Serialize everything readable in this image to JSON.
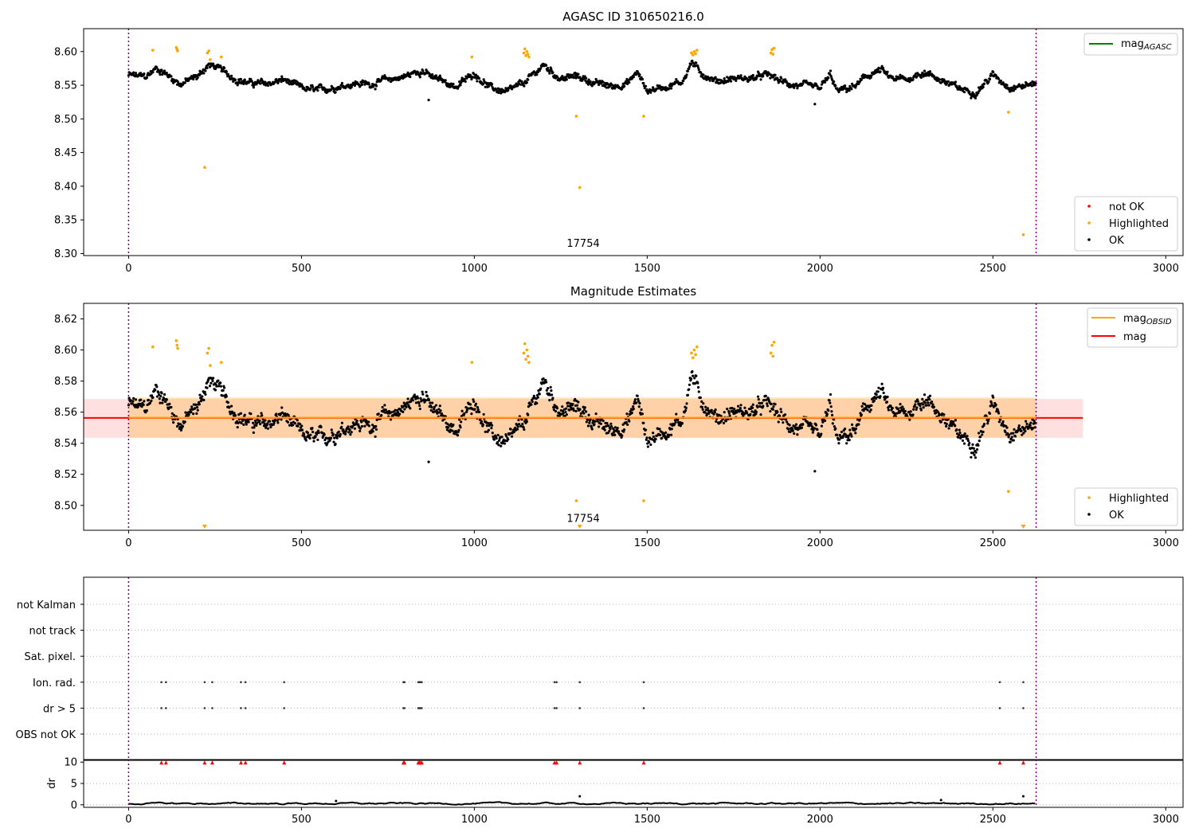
{
  "chart_data": [
    {
      "type": "scatter",
      "title": "AGASC ID 310650216.0",
      "xlim": [
        -130,
        3050
      ],
      "ylim": [
        8.297,
        8.634
      ],
      "xticks": [
        0,
        500,
        1000,
        1500,
        2000,
        2500,
        3000
      ],
      "yticks": [
        8.3,
        8.35,
        8.4,
        8.45,
        8.5,
        8.55,
        8.6
      ],
      "ytick_labels": [
        "8.30",
        "8.35",
        "8.40",
        "8.45",
        "8.50",
        "8.55",
        "8.60"
      ],
      "vlines_x": [
        0,
        2625
      ],
      "obsid_label": {
        "text": "17754",
        "x": 1315,
        "y": 8.31
      },
      "legends": [
        {
          "position": "upper right",
          "items": [
            {
              "label": "mag",
              "sub": "AGASC",
              "color": "#008000",
              "kind": "line"
            }
          ]
        },
        {
          "position": "lower right",
          "items": [
            {
              "label": "not OK",
              "color": "#ff0000",
              "kind": "dot"
            },
            {
              "label": "Highlighted",
              "color": "#ffa500",
              "kind": "dot"
            },
            {
              "label": "OK",
              "color": "#000000",
              "kind": "dot"
            }
          ]
        }
      ],
      "series": [
        {
          "name": "OK",
          "color": "#000000",
          "kind": "scatter",
          "profile_x": [
            0,
            50,
            80,
            100,
            150,
            200,
            230,
            250,
            300,
            350,
            400,
            450,
            500,
            550,
            600,
            650,
            700,
            750,
            800,
            850,
            880,
            900,
            950,
            1000,
            1050,
            1100,
            1150,
            1200,
            1250,
            1300,
            1350,
            1400,
            1450,
            1470,
            1500,
            1550,
            1600,
            1630,
            1650,
            1700,
            1750,
            1800,
            1850,
            1900,
            1950,
            2000,
            2030,
            2050,
            2100,
            2150,
            2180,
            2200,
            2250,
            2300,
            2350,
            2400,
            2450,
            2500,
            2550,
            2600,
            2625
          ],
          "profile_y": [
            8.565,
            8.562,
            8.575,
            8.57,
            8.552,
            8.563,
            8.58,
            8.578,
            8.562,
            8.553,
            8.552,
            8.558,
            8.545,
            8.542,
            8.548,
            8.553,
            8.552,
            8.558,
            8.563,
            8.573,
            8.56,
            8.558,
            8.548,
            8.568,
            8.545,
            8.54,
            8.555,
            8.58,
            8.56,
            8.563,
            8.553,
            8.548,
            8.555,
            8.57,
            8.542,
            8.548,
            8.555,
            8.585,
            8.57,
            8.556,
            8.56,
            8.56,
            8.565,
            8.553,
            8.548,
            8.545,
            8.565,
            8.54,
            8.548,
            8.568,
            8.572,
            8.56,
            8.558,
            8.57,
            8.558,
            8.545,
            8.54,
            8.565,
            8.548,
            8.55,
            8.553
          ],
          "outliers": [
            [
              868,
              8.528
            ],
            [
              1985,
              8.522
            ]
          ]
        },
        {
          "name": "Highlighted",
          "color": "#ffa500",
          "kind": "scatter",
          "points": [
            [
              70,
              8.602
            ],
            [
              138,
              8.606
            ],
            [
              140,
              8.603
            ],
            [
              142,
              8.601
            ],
            [
              220,
              8.428
            ],
            [
              228,
              8.598
            ],
            [
              232,
              8.601
            ],
            [
              236,
              8.588
            ],
            [
              268,
              8.592
            ],
            [
              993,
              8.592
            ],
            [
              1143,
              8.598
            ],
            [
              1146,
              8.604
            ],
            [
              1149,
              8.594
            ],
            [
              1152,
              8.6
            ],
            [
              1155,
              8.596
            ],
            [
              1158,
              8.592
            ],
            [
              1295,
              8.504
            ],
            [
              1305,
              8.398
            ],
            [
              1490,
              8.504
            ],
            [
              1628,
              8.598
            ],
            [
              1632,
              8.595
            ],
            [
              1636,
              8.6
            ],
            [
              1640,
              8.597
            ],
            [
              1644,
              8.602
            ],
            [
              1858,
              8.598
            ],
            [
              1861,
              8.603
            ],
            [
              1864,
              8.596
            ],
            [
              1867,
              8.605
            ],
            [
              2545,
              8.51
            ],
            [
              2588,
              8.328
            ]
          ]
        }
      ]
    },
    {
      "type": "scatter",
      "title": "Magnitude Estimates",
      "xlim": [
        -130,
        3050
      ],
      "ylim": [
        8.484,
        8.63
      ],
      "xticks": [
        0,
        500,
        1000,
        1500,
        2000,
        2500,
        3000
      ],
      "yticks": [
        8.5,
        8.52,
        8.54,
        8.56,
        8.58,
        8.6,
        8.62
      ],
      "ytick_labels": [
        "8.50",
        "8.52",
        "8.54",
        "8.56",
        "8.58",
        "8.60",
        "8.62"
      ],
      "vlines_x": [
        0,
        2625
      ],
      "obsid_label": {
        "text": "17754",
        "x": 1315,
        "y": 8.49
      },
      "bands": [
        {
          "name": "mag",
          "x": [
            -130,
            2760
          ],
          "y": [
            8.5435,
            8.5685
          ],
          "color": "#ff0000",
          "opacity": 0.12
        },
        {
          "name": "mag_OBSID",
          "x": [
            0,
            2625
          ],
          "y": [
            8.5435,
            8.5695
          ],
          "color": "#ffa500",
          "opacity": 0.25
        }
      ],
      "hlines": [
        {
          "name": "mag",
          "y": 8.5563,
          "x": [
            -130,
            2760
          ],
          "color": "#ff0000"
        },
        {
          "name": "mag_OBSID",
          "y": 8.5565,
          "x": [
            0,
            2625
          ],
          "color": "#ffa500"
        }
      ],
      "legends": [
        {
          "position": "upper right",
          "items": [
            {
              "label": "mag",
              "sub": "OBSID",
              "color": "#ffa500",
              "kind": "line"
            },
            {
              "label": "mag",
              "sub": "",
              "color": "#ff0000",
              "kind": "line"
            }
          ]
        },
        {
          "position": "lower right",
          "items": [
            {
              "label": "Highlighted",
              "color": "#ffa500",
              "kind": "dot"
            },
            {
              "label": "OK",
              "color": "#000000",
              "kind": "dot"
            }
          ]
        }
      ],
      "series": [
        {
          "name": "OK",
          "color": "#000000",
          "kind": "scatter",
          "same_as": "OK"
        },
        {
          "name": "Highlighted",
          "color": "#ffa500",
          "kind": "scatter",
          "points": [
            [
              70,
              8.602
            ],
            [
              138,
              8.606
            ],
            [
              140,
              8.603
            ],
            [
              142,
              8.601
            ],
            [
              228,
              8.598
            ],
            [
              232,
              8.601
            ],
            [
              236,
              8.59
            ],
            [
              268,
              8.592
            ],
            [
              993,
              8.592
            ],
            [
              1143,
              8.598
            ],
            [
              1146,
              8.604
            ],
            [
              1149,
              8.594
            ],
            [
              1152,
              8.6
            ],
            [
              1155,
              8.596
            ],
            [
              1158,
              8.592
            ],
            [
              1295,
              8.503
            ],
            [
              1490,
              8.503
            ],
            [
              1628,
              8.598
            ],
            [
              1632,
              8.595
            ],
            [
              1636,
              8.6
            ],
            [
              1640,
              8.597
            ],
            [
              1644,
              8.602
            ],
            [
              1858,
              8.598
            ],
            [
              1861,
              8.603
            ],
            [
              1864,
              8.596
            ],
            [
              1867,
              8.605
            ],
            [
              2545,
              8.509
            ]
          ],
          "clipped_markers_x": [
            220,
            1305,
            2588
          ]
        }
      ]
    },
    {
      "type": "scatter",
      "title": "",
      "xlim": [
        -130,
        3050
      ],
      "xticks": [
        0,
        500,
        1000,
        1500,
        2000,
        2500,
        3000
      ],
      "vlines_x": [
        0,
        2625
      ],
      "flag_rows": [
        "not Kalman",
        "not track",
        "Sat. pixel.",
        "Ion. rad.",
        "dr > 5",
        "OBS not OK"
      ],
      "flag_points": {
        "not Kalman": [],
        "not track": [],
        "Sat. pixel.": [],
        "Ion. rad.": [
          95,
          108,
          220,
          242,
          325,
          338,
          450,
          795,
          798,
          838,
          841,
          844,
          848,
          1232,
          1238,
          1305,
          1490,
          2520,
          2588
        ],
        "dr > 5": [
          95,
          108,
          220,
          242,
          325,
          338,
          450,
          795,
          798,
          838,
          841,
          844,
          848,
          1232,
          1238,
          1305,
          1490,
          2520,
          2588
        ],
        "OBS not OK": []
      }
    },
    {
      "type": "line",
      "title": "",
      "ylabel": "dr",
      "xlim": [
        -130,
        3050
      ],
      "ylim": [
        -0.6,
        10.6
      ],
      "xticks": [
        0,
        500,
        1000,
        1500,
        2000,
        2500,
        3000
      ],
      "yticks": [
        0,
        5,
        10
      ],
      "ytick_labels": [
        "0",
        "5",
        "10"
      ],
      "vlines_x": [
        0,
        2625
      ],
      "series": [
        {
          "name": "dr",
          "color": "#000000",
          "kind": "line",
          "base_value": 0.3
        },
        {
          "name": "dr > 10",
          "color": "#ff0000",
          "kind": "triangle",
          "y": 10,
          "x": [
            95,
            108,
            220,
            242,
            325,
            338,
            450,
            795,
            798,
            838,
            841,
            844,
            848,
            1232,
            1238,
            1305,
            1490,
            2520,
            2588
          ]
        },
        {
          "name": "dr spikes",
          "color": "#000000",
          "kind": "scatter",
          "points": [
            [
              1305,
              2.0
            ],
            [
              2588,
              2.0
            ],
            [
              600,
              0.9
            ],
            [
              2350,
              1.1
            ]
          ]
        }
      ]
    }
  ]
}
